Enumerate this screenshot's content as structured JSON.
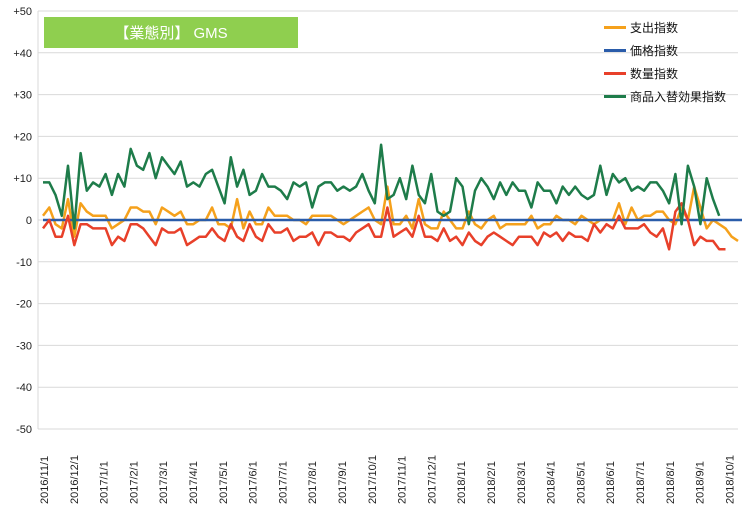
{
  "chart_data": {
    "type": "line",
    "title": "【業態別】 GMS",
    "xlabel": "",
    "ylabel": "",
    "ylim": [
      -50,
      50
    ],
    "y_ticks": [
      "+50",
      "+40",
      "+30",
      "+20",
      "+10",
      "0",
      "-10",
      "-20",
      "-30",
      "-40",
      "-50"
    ],
    "y_tick_values": [
      50,
      40,
      30,
      20,
      10,
      0,
      -10,
      -20,
      -30,
      -40,
      -50
    ],
    "x_ticks": [
      "2016/11/1",
      "2016/12/1",
      "2017/1/1",
      "2017/2/1",
      "2017/3/1",
      "2017/4/1",
      "2017/5/1",
      "2017/6/1",
      "2017/7/1",
      "2017/8/1",
      "2017/9/1",
      "2017/10/1",
      "2017/11/1",
      "2017/12/1",
      "2018/1/1",
      "2018/2/1",
      "2018/3/1",
      "2018/4/1",
      "2018/5/1",
      "2018/6/1",
      "2018/7/1",
      "2018/8/1",
      "2018/9/1",
      "2018/10/1"
    ],
    "grid": true,
    "legend_position": "top-right",
    "series": [
      {
        "name": "支出指数",
        "color": "#f5a11c",
        "values": [
          1,
          3,
          -1,
          -2,
          5,
          -4,
          4,
          2,
          1,
          1,
          1,
          -2,
          -1,
          0,
          3,
          3,
          2,
          2,
          -1,
          3,
          2,
          1,
          2,
          -1,
          -1,
          0,
          0,
          3,
          -1,
          -1,
          -2,
          5,
          -2,
          2,
          -1,
          -1,
          3,
          1,
          1,
          1,
          0,
          0,
          -1,
          1,
          1,
          1,
          1,
          0,
          -1,
          0,
          1,
          2,
          3,
          0,
          -1,
          8,
          -1,
          -1,
          1,
          -2,
          5,
          -1,
          -2,
          -2,
          2,
          0,
          -2,
          -2,
          2,
          -1,
          -2,
          0,
          1,
          -2,
          -1,
          -1,
          -1,
          -1,
          1,
          -2,
          -1,
          -1,
          1,
          0,
          0,
          -1,
          1,
          0,
          -1,
          0,
          0,
          0,
          4,
          -1,
          3,
          0,
          1,
          1,
          2,
          2,
          0,
          -1,
          3,
          0,
          8,
          3,
          -2,
          0,
          -1,
          -2,
          -4,
          -5
        ]
      },
      {
        "name": "価格指数",
        "color": "#2a5caa",
        "values": [
          0,
          0,
          0,
          0,
          0,
          0,
          0,
          0,
          0,
          0,
          0,
          0,
          0,
          0,
          0,
          0,
          0,
          0,
          0,
          0,
          0,
          0,
          0,
          0,
          0,
          0,
          0,
          0,
          0,
          0,
          0,
          0,
          0,
          0,
          0,
          0,
          0,
          0,
          0,
          0,
          0,
          0,
          0,
          0,
          0,
          0,
          0,
          0,
          0,
          0,
          0,
          0,
          0,
          0,
          0,
          0,
          0,
          0,
          0,
          0,
          0,
          0,
          0,
          0,
          0,
          0,
          0,
          0,
          0,
          0,
          0,
          0,
          0,
          0,
          0,
          0,
          0,
          0,
          0,
          0,
          0,
          0,
          0,
          0,
          0,
          0,
          0,
          0,
          0,
          0,
          0,
          0,
          0,
          0,
          0,
          0,
          0,
          0,
          0,
          0,
          0,
          0,
          0,
          0,
          0,
          0,
          0,
          0,
          0,
          0,
          0,
          0,
          0,
          0
        ]
      },
      {
        "name": "数量指数",
        "color": "#e8402a",
        "values": [
          -2,
          0,
          -4,
          -4,
          1,
          -6,
          -1,
          -1,
          -2,
          -2,
          -2,
          -6,
          -4,
          -5,
          -1,
          -1,
          -2,
          -4,
          -6,
          -2,
          -3,
          -3,
          -2,
          -6,
          -5,
          -4,
          -4,
          -2,
          -4,
          -5,
          -1,
          -4,
          -5,
          -1,
          -4,
          -5,
          -1,
          -3,
          -3,
          -2,
          -5,
          -4,
          -4,
          -3,
          -6,
          -3,
          -3,
          -4,
          -4,
          -5,
          -3,
          -2,
          -1,
          -4,
          -4,
          3,
          -4,
          -3,
          -2,
          -4,
          1,
          -4,
          -4,
          -5,
          -2,
          -5,
          -4,
          -6,
          -3,
          -5,
          -6,
          -4,
          -3,
          -4,
          -5,
          -6,
          -4,
          -4,
          -4,
          -6,
          -3,
          -4,
          -3,
          -5,
          -3,
          -4,
          -4,
          -5,
          -1,
          -3,
          -1,
          -2,
          1,
          -2,
          -2,
          -2,
          -1,
          -3,
          -4,
          -2,
          -7,
          2,
          4,
          0,
          -6,
          -4,
          -5,
          -5,
          -7,
          -7
        ]
      },
      {
        "name": "商品入替効果指数",
        "color": "#1e7c4a",
        "values": [
          9,
          9,
          6,
          1,
          13,
          -2,
          16,
          7,
          9,
          8,
          11,
          6,
          11,
          8,
          17,
          13,
          12,
          16,
          10,
          15,
          13,
          11,
          14,
          8,
          9,
          8,
          11,
          12,
          8,
          4,
          15,
          8,
          12,
          6,
          7,
          11,
          8,
          8,
          7,
          5,
          9,
          8,
          9,
          3,
          8,
          9,
          9,
          7,
          8,
          7,
          8,
          11,
          7,
          4,
          18,
          5,
          6,
          10,
          5,
          13,
          6,
          4,
          11,
          2,
          1,
          2,
          10,
          8,
          -1,
          7,
          10,
          8,
          5,
          9,
          6,
          9,
          7,
          7,
          3,
          9,
          7,
          7,
          4,
          8,
          6,
          8,
          6,
          5,
          6,
          13,
          6,
          11,
          9,
          10,
          7,
          8,
          7,
          9,
          9,
          7,
          4,
          11,
          -1,
          13,
          8,
          -1,
          10,
          5,
          1
        ]
      }
    ]
  }
}
